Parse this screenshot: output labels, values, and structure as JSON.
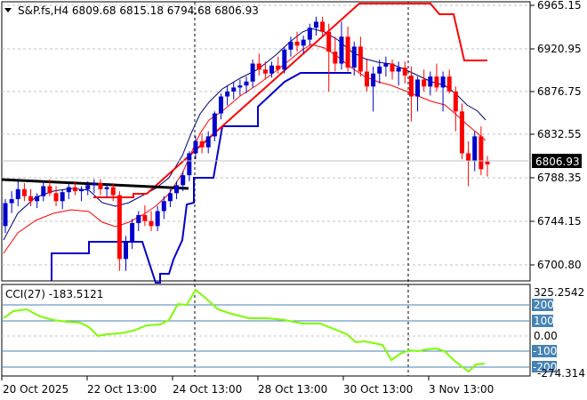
{
  "header": {
    "symbol_line": "S&P.fs,H4  6809.68 6815.18 6794.68 6806.93"
  },
  "price_axis": {
    "labels": [
      "6965.15",
      "6920.95",
      "6876.75",
      "6832.55",
      "6788.35",
      "6744.15",
      "6700.80"
    ],
    "current": "6806.93"
  },
  "cci": {
    "label": "CCI(27) -183.5121",
    "axis_top": "325.2542",
    "axis_bottom": "-274.314",
    "levels": [
      "200",
      "100",
      "0.00",
      "-100",
      "-200"
    ]
  },
  "time_axis": [
    "20 Oct 2025",
    "22 Oct 13:00",
    "24 Oct 13:00",
    "28 Oct 13:00",
    "30 Oct 13:00",
    "3 Nov 13:00"
  ],
  "colors": {
    "bull": "#0000CD",
    "bear": "#FF0000",
    "upper_band": "#000080",
    "lower_band": "#FF0000",
    "cci_line": "#7CFC00",
    "cci_level_box": "#4682B4"
  },
  "chart_data": {
    "type": "candlestick",
    "y_range": [
      6690,
      6970
    ],
    "candles": [
      [
        6745,
        6772,
        6738,
        6768
      ],
      [
        6768,
        6780,
        6758,
        6772
      ],
      [
        6772,
        6790,
        6765,
        6782
      ],
      [
        6782,
        6788,
        6770,
        6775
      ],
      [
        6775,
        6782,
        6765,
        6770
      ],
      [
        6770,
        6778,
        6763,
        6775
      ],
      [
        6775,
        6790,
        6770,
        6785
      ],
      [
        6785,
        6792,
        6775,
        6778
      ],
      [
        6778,
        6785,
        6765,
        6770
      ],
      [
        6770,
        6782,
        6762,
        6779
      ],
      [
        6779,
        6788,
        6772,
        6784
      ],
      [
        6784,
        6790,
        6776,
        6780
      ],
      [
        6780,
        6785,
        6770,
        6782
      ],
      [
        6782,
        6790,
        6776,
        6786
      ],
      [
        6786,
        6792,
        6778,
        6788
      ],
      [
        6788,
        6792,
        6776,
        6782
      ],
      [
        6782,
        6788,
        6774,
        6784
      ],
      [
        6784,
        6788,
        6770,
        6776
      ],
      [
        6776,
        6780,
        6700,
        6712
      ],
      [
        6712,
        6735,
        6700,
        6730
      ],
      [
        6730,
        6752,
        6722,
        6748
      ],
      [
        6748,
        6760,
        6740,
        6756
      ],
      [
        6756,
        6766,
        6745,
        6750
      ],
      [
        6750,
        6760,
        6740,
        6745
      ],
      [
        6745,
        6765,
        6740,
        6760
      ],
      [
        6760,
        6775,
        6752,
        6770
      ],
      [
        6770,
        6782,
        6764,
        6778
      ],
      [
        6778,
        6790,
        6772,
        6786
      ],
      [
        6786,
        6800,
        6780,
        6796
      ],
      [
        6796,
        6820,
        6790,
        6818
      ],
      [
        6818,
        6835,
        6812,
        6830
      ],
      [
        6830,
        6838,
        6818,
        6824
      ],
      [
        6824,
        6840,
        6818,
        6835
      ],
      [
        6835,
        6860,
        6830,
        6858
      ],
      [
        6858,
        6878,
        6852,
        6875
      ],
      [
        6875,
        6886,
        6866,
        6880
      ],
      [
        6880,
        6890,
        6872,
        6884
      ],
      [
        6884,
        6892,
        6876,
        6886
      ],
      [
        6886,
        6895,
        6878,
        6890
      ],
      [
        6890,
        6912,
        6884,
        6908
      ],
      [
        6908,
        6918,
        6896,
        6902
      ],
      [
        6902,
        6910,
        6892,
        6898
      ],
      [
        6898,
        6910,
        6894,
        6906
      ],
      [
        6906,
        6915,
        6898,
        6902
      ],
      [
        6902,
        6925,
        6898,
        6922
      ],
      [
        6922,
        6935,
        6915,
        6930
      ],
      [
        6930,
        6940,
        6920,
        6926
      ],
      [
        6926,
        6936,
        6918,
        6932
      ],
      [
        6932,
        6948,
        6926,
        6944
      ],
      [
        6944,
        6955,
        6936,
        6950
      ],
      [
        6950,
        6955,
        6935,
        6940
      ],
      [
        6940,
        6948,
        6880,
        6920
      ],
      [
        6920,
        6935,
        6900,
        6908
      ],
      [
        6908,
        6950,
        6902,
        6935
      ],
      [
        6935,
        6945,
        6900,
        6904
      ],
      [
        6904,
        6930,
        6896,
        6925
      ],
      [
        6925,
        6935,
        6895,
        6900
      ],
      [
        6900,
        6912,
        6880,
        6885
      ],
      [
        6885,
        6905,
        6860,
        6898
      ],
      [
        6898,
        6912,
        6888,
        6905
      ],
      [
        6905,
        6915,
        6895,
        6908
      ],
      [
        6908,
        6912,
        6892,
        6900
      ],
      [
        6900,
        6910,
        6886,
        6904
      ],
      [
        6904,
        6910,
        6888,
        6896
      ],
      [
        6896,
        6905,
        6850,
        6875
      ],
      [
        6875,
        6895,
        6860,
        6892
      ],
      [
        6892,
        6902,
        6880,
        6885
      ],
      [
        6885,
        6900,
        6876,
        6895
      ],
      [
        6895,
        6908,
        6880,
        6884
      ],
      [
        6884,
        6900,
        6860,
        6895
      ],
      [
        6895,
        6902,
        6878,
        6880
      ],
      [
        6880,
        6885,
        6840,
        6860
      ],
      [
        6860,
        6868,
        6812,
        6818
      ],
      [
        6818,
        6830,
        6785,
        6810
      ],
      [
        6810,
        6840,
        6800,
        6835
      ],
      [
        6835,
        6845,
        6796,
        6802
      ],
      [
        6809.68,
        6815.18,
        6794.68,
        6806.93
      ]
    ]
  }
}
